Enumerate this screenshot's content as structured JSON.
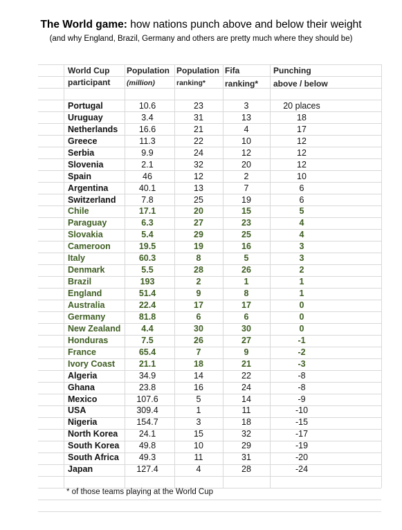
{
  "header": {
    "title_bold": "The World game:",
    "title_rest": "how nations punch above and below their weight",
    "subtitle": "(and why England, Brazil, Germany and others are pretty much where they should be)"
  },
  "table": {
    "columns": [
      [
        "World Cup",
        "participant"
      ],
      [
        "Population",
        "(million)"
      ],
      [
        "Population",
        "ranking*"
      ],
      [
        "Fifa",
        "ranking*"
      ],
      [
        "Punching",
        "above / below"
      ]
    ],
    "rows": [
      {
        "cells": [
          "Portugal",
          10.6,
          23,
          3,
          "20 places"
        ],
        "color": "#111111"
      },
      {
        "cells": [
          "Uruguay",
          3.4,
          31,
          13,
          18
        ],
        "color": "#111111"
      },
      {
        "cells": [
          "Netherlands",
          16.6,
          21,
          4,
          17
        ],
        "color": "#111111"
      },
      {
        "cells": [
          "Greece",
          11.3,
          22,
          10,
          12
        ],
        "color": "#111111"
      },
      {
        "cells": [
          "Serbia",
          9.9,
          24,
          12,
          12
        ],
        "color": "#111111"
      },
      {
        "cells": [
          "Slovenia",
          2.1,
          32,
          20,
          12
        ],
        "color": "#111111"
      },
      {
        "cells": [
          "Spain",
          46,
          12,
          2,
          10
        ],
        "color": "#111111"
      },
      {
        "cells": [
          "Argentina",
          40.1,
          13,
          7,
          6
        ],
        "color": "#111111"
      },
      {
        "cells": [
          "Switzerland",
          7.8,
          25,
          19,
          6
        ],
        "color": "#111111"
      },
      {
        "cells": [
          "Chile",
          17.1,
          20,
          15,
          5
        ],
        "color": "#3e5d22"
      },
      {
        "cells": [
          "Paraguay",
          6.3,
          27,
          23,
          4
        ],
        "color": "#3e5d22"
      },
      {
        "cells": [
          "Slovakia",
          5.4,
          29,
          25,
          4
        ],
        "color": "#3e5d22"
      },
      {
        "cells": [
          "Cameroon",
          19.5,
          19,
          16,
          3
        ],
        "color": "#3e5d22"
      },
      {
        "cells": [
          "Italy",
          60.3,
          8,
          5,
          3
        ],
        "color": "#3e5d22"
      },
      {
        "cells": [
          "Denmark",
          5.5,
          28,
          26,
          2
        ],
        "color": "#3e5d22"
      },
      {
        "cells": [
          "Brazil",
          193,
          2,
          1,
          1
        ],
        "color": "#3e5d22"
      },
      {
        "cells": [
          "England",
          51.4,
          9,
          8,
          1
        ],
        "color": "#3e5d22"
      },
      {
        "cells": [
          "Australia",
          22.4,
          17,
          17,
          0
        ],
        "color": "#3e5d22"
      },
      {
        "cells": [
          "Germany",
          81.8,
          6,
          6,
          0
        ],
        "color": "#3e5d22"
      },
      {
        "cells": [
          "New Zealand",
          4.4,
          30,
          30,
          0
        ],
        "color": "#3e5d22"
      },
      {
        "cells": [
          "Honduras",
          7.5,
          26,
          27,
          -1
        ],
        "color": "#3e5d22"
      },
      {
        "cells": [
          "France",
          65.4,
          7,
          9,
          -2
        ],
        "color": "#3e5d22"
      },
      {
        "cells": [
          "Ivory Coast",
          21.1,
          18,
          21,
          -3
        ],
        "color": "#3e5d22"
      },
      {
        "cells": [
          "Algeria",
          34.9,
          14,
          22,
          -8
        ],
        "color": "#111111"
      },
      {
        "cells": [
          "Ghana",
          23.8,
          16,
          24,
          -8
        ],
        "color": "#111111"
      },
      {
        "cells": [
          "Mexico",
          107.6,
          5,
          14,
          -9
        ],
        "color": "#111111"
      },
      {
        "cells": [
          "USA",
          309.4,
          1,
          11,
          -10
        ],
        "color": "#111111"
      },
      {
        "cells": [
          "Nigeria",
          154.7,
          3,
          18,
          -15
        ],
        "color": "#111111"
      },
      {
        "cells": [
          "North Korea",
          24.1,
          15,
          32,
          -17
        ],
        "color": "#111111"
      },
      {
        "cells": [
          "South Korea",
          49.8,
          10,
          29,
          -19
        ],
        "color": "#111111"
      },
      {
        "cells": [
          "South Africa",
          49.3,
          11,
          31,
          -20
        ],
        "color": "#111111"
      },
      {
        "cells": [
          "Japan",
          127.4,
          4,
          28,
          -24
        ],
        "color": "#111111"
      }
    ],
    "footnote": "* of those teams playing at the World Cup"
  }
}
